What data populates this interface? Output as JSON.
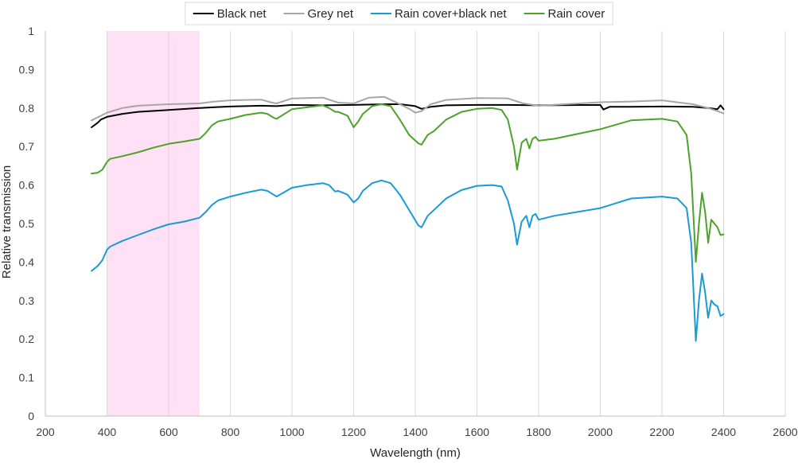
{
  "chart_data": {
    "type": "line",
    "title": "",
    "xlabel": "Wavelength (nm)",
    "ylabel": "Relative transmission",
    "xlim": [
      200,
      2600
    ],
    "ylim": [
      0,
      1
    ],
    "xticks": [
      200,
      400,
      600,
      800,
      1000,
      1200,
      1400,
      1600,
      1800,
      2000,
      2200,
      2400,
      2600
    ],
    "xtick_labels": [
      "200",
      "400",
      "600",
      "800",
      "1000",
      "1200",
      "1400",
      "1600",
      "1800",
      "2000",
      "2200",
      "2400",
      "2600"
    ],
    "yticks": [
      0,
      0.1,
      0.2,
      0.3,
      0.4,
      0.5,
      0.6,
      0.7,
      0.8,
      0.9,
      1
    ],
    "ytick_labels": [
      "0",
      "0.1",
      "0.2",
      "0.3",
      "0.4",
      "0.5",
      "0.6",
      "0.7",
      "0.8",
      "0.9",
      "1"
    ],
    "grid": "vertical",
    "legend_position": "top",
    "highlight_band": {
      "x": [
        400,
        700
      ],
      "color": "#ffe0f5"
    },
    "series": [
      {
        "name": "Black net",
        "color": "#000000",
        "x": [
          350,
          370,
          380,
          400,
          450,
          500,
          600,
          700,
          750,
          800,
          900,
          950,
          1000,
          1100,
          1200,
          1300,
          1350,
          1400,
          1420,
          1450,
          1500,
          1600,
          1700,
          1800,
          2000,
          2010,
          2030,
          2100,
          2200,
          2300,
          2350,
          2380,
          2390,
          2400
        ],
        "y": [
          0.75,
          0.762,
          0.77,
          0.777,
          0.785,
          0.79,
          0.795,
          0.8,
          0.802,
          0.804,
          0.806,
          0.805,
          0.808,
          0.807,
          0.808,
          0.81,
          0.81,
          0.805,
          0.798,
          0.803,
          0.807,
          0.808,
          0.808,
          0.807,
          0.808,
          0.796,
          0.803,
          0.803,
          0.804,
          0.803,
          0.8,
          0.797,
          0.807,
          0.797
        ]
      },
      {
        "name": "Grey net",
        "color": "#a6a6a6",
        "x": [
          350,
          380,
          400,
          450,
          500,
          600,
          700,
          750,
          800,
          850,
          900,
          930,
          950,
          1000,
          1050,
          1100,
          1150,
          1200,
          1250,
          1300,
          1350,
          1380,
          1400,
          1420,
          1450,
          1500,
          1600,
          1700,
          1750,
          1800,
          2000,
          2100,
          2200,
          2300,
          2350,
          2380,
          2400
        ],
        "y": [
          0.768,
          0.78,
          0.788,
          0.8,
          0.806,
          0.81,
          0.812,
          0.817,
          0.82,
          0.821,
          0.822,
          0.815,
          0.812,
          0.825,
          0.826,
          0.827,
          0.814,
          0.812,
          0.827,
          0.829,
          0.81,
          0.798,
          0.788,
          0.792,
          0.81,
          0.821,
          0.826,
          0.825,
          0.812,
          0.806,
          0.815,
          0.817,
          0.82,
          0.81,
          0.8,
          0.792,
          0.786
        ]
      },
      {
        "name": "Rain cover+black net",
        "color": "#1a9ad6",
        "x": [
          350,
          370,
          385,
          400,
          410,
          450,
          500,
          550,
          600,
          650,
          700,
          720,
          740,
          760,
          800,
          850,
          900,
          920,
          940,
          950,
          1000,
          1050,
          1100,
          1120,
          1140,
          1150,
          1180,
          1200,
          1215,
          1230,
          1260,
          1290,
          1320,
          1350,
          1380,
          1410,
          1420,
          1440,
          1460,
          1480,
          1500,
          1550,
          1600,
          1650,
          1680,
          1700,
          1720,
          1730,
          1745,
          1760,
          1770,
          1780,
          1790,
          1800,
          1850,
          2000,
          2100,
          2200,
          2250,
          2280,
          2295,
          2310,
          2320,
          2330,
          2340,
          2350,
          2360,
          2370,
          2380,
          2390,
          2400
        ],
        "y": [
          0.377,
          0.39,
          0.405,
          0.432,
          0.44,
          0.455,
          0.47,
          0.485,
          0.498,
          0.505,
          0.515,
          0.53,
          0.548,
          0.56,
          0.57,
          0.58,
          0.588,
          0.585,
          0.575,
          0.57,
          0.593,
          0.6,
          0.605,
          0.6,
          0.583,
          0.585,
          0.575,
          0.555,
          0.565,
          0.585,
          0.605,
          0.612,
          0.605,
          0.575,
          0.535,
          0.495,
          0.49,
          0.52,
          0.535,
          0.55,
          0.565,
          0.587,
          0.598,
          0.6,
          0.596,
          0.56,
          0.5,
          0.445,
          0.505,
          0.52,
          0.49,
          0.52,
          0.525,
          0.51,
          0.52,
          0.54,
          0.565,
          0.57,
          0.565,
          0.54,
          0.45,
          0.195,
          0.3,
          0.37,
          0.32,
          0.255,
          0.3,
          0.29,
          0.285,
          0.26,
          0.265
        ]
      },
      {
        "name": "Rain cover",
        "color": "#4ca32a",
        "x": [
          350,
          370,
          385,
          400,
          410,
          450,
          500,
          550,
          600,
          650,
          700,
          720,
          740,
          760,
          800,
          850,
          900,
          920,
          940,
          950,
          1000,
          1050,
          1100,
          1120,
          1140,
          1150,
          1180,
          1200,
          1215,
          1230,
          1260,
          1290,
          1320,
          1350,
          1380,
          1410,
          1420,
          1440,
          1460,
          1480,
          1500,
          1550,
          1600,
          1650,
          1680,
          1700,
          1720,
          1730,
          1745,
          1760,
          1770,
          1780,
          1790,
          1800,
          1850,
          2000,
          2100,
          2200,
          2250,
          2280,
          2295,
          2310,
          2320,
          2330,
          2340,
          2350,
          2360,
          2370,
          2380,
          2390,
          2400
        ],
        "y": [
          0.63,
          0.632,
          0.64,
          0.66,
          0.668,
          0.675,
          0.685,
          0.697,
          0.707,
          0.713,
          0.72,
          0.735,
          0.755,
          0.765,
          0.772,
          0.782,
          0.788,
          0.785,
          0.775,
          0.772,
          0.797,
          0.802,
          0.807,
          0.8,
          0.79,
          0.79,
          0.78,
          0.75,
          0.765,
          0.785,
          0.805,
          0.81,
          0.805,
          0.77,
          0.73,
          0.708,
          0.705,
          0.73,
          0.74,
          0.755,
          0.77,
          0.79,
          0.798,
          0.8,
          0.795,
          0.77,
          0.7,
          0.64,
          0.71,
          0.72,
          0.695,
          0.72,
          0.725,
          0.715,
          0.72,
          0.745,
          0.768,
          0.772,
          0.765,
          0.73,
          0.63,
          0.4,
          0.5,
          0.58,
          0.53,
          0.45,
          0.51,
          0.5,
          0.49,
          0.47,
          0.472
        ]
      }
    ]
  }
}
